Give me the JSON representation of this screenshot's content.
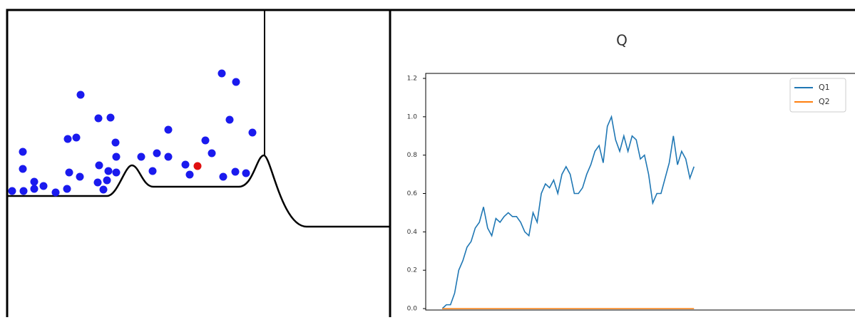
{
  "chart_data": {
    "type": "line",
    "title": "Q",
    "x": [
      4,
      5,
      6,
      7,
      8,
      9,
      10,
      11,
      12,
      13,
      14,
      15,
      16,
      17,
      18,
      19,
      20,
      21,
      22,
      23,
      24,
      25,
      26,
      27,
      28,
      29,
      30,
      31,
      32,
      33,
      34,
      35,
      36,
      37,
      38,
      39,
      40,
      41,
      42,
      43,
      44,
      45,
      46,
      47,
      48,
      49,
      50,
      51,
      52,
      53,
      54,
      55,
      56,
      57,
      58,
      59,
      60,
      61,
      62,
      63,
      64,
      65
    ],
    "series": [
      {
        "name": "Q1",
        "color": "#1f77b4",
        "values": [
          0,
          0.02,
          0.02,
          0.08,
          0.2,
          0.25,
          0.32,
          0.35,
          0.42,
          0.45,
          0.53,
          0.42,
          0.38,
          0.47,
          0.45,
          0.48,
          0.5,
          0.48,
          0.48,
          0.45,
          0.4,
          0.38,
          0.5,
          0.45,
          0.6,
          0.65,
          0.63,
          0.67,
          0.6,
          0.7,
          0.74,
          0.7,
          0.6,
          0.6,
          0.63,
          0.7,
          0.75,
          0.82,
          0.85,
          0.76,
          0.95,
          1.0,
          0.88,
          0.82,
          0.9,
          0.82,
          0.9,
          0.88,
          0.78,
          0.8,
          0.7,
          0.55,
          0.6,
          0.6,
          0.68,
          0.76,
          0.9,
          0.75,
          0.82,
          0.78,
          0.68,
          0.74
        ]
      },
      {
        "name": "Q2",
        "color": "#ff7f0e",
        "values": [
          0,
          0,
          0,
          0,
          0,
          0,
          0,
          0,
          0,
          0,
          0,
          0,
          0,
          0,
          0,
          0,
          0,
          0,
          0,
          0,
          0,
          0,
          0,
          0,
          0,
          0,
          0,
          0,
          0,
          0,
          0,
          0,
          0,
          0,
          0,
          0,
          0,
          0,
          0,
          0,
          0,
          0,
          0,
          0,
          0,
          0,
          0,
          0,
          0,
          0,
          0,
          0,
          0,
          0,
          0,
          0,
          0,
          0,
          0,
          0,
          0,
          0
        ]
      }
    ],
    "xlim": [
      0,
      104
    ],
    "ylim": [
      0,
      1.2
    ],
    "yticks": [
      {
        "value": 0,
        "label": "0.0"
      },
      {
        "value": 0.2,
        "label": "0.2"
      },
      {
        "value": 0.4,
        "label": "0.4"
      },
      {
        "value": 0.6,
        "label": "0.6"
      },
      {
        "value": 0.8,
        "label": "0.8"
      },
      {
        "value": 1.0,
        "label": "1.0"
      },
      {
        "value": 1.2,
        "label": "1.2"
      }
    ],
    "legend": "upper right"
  }
}
